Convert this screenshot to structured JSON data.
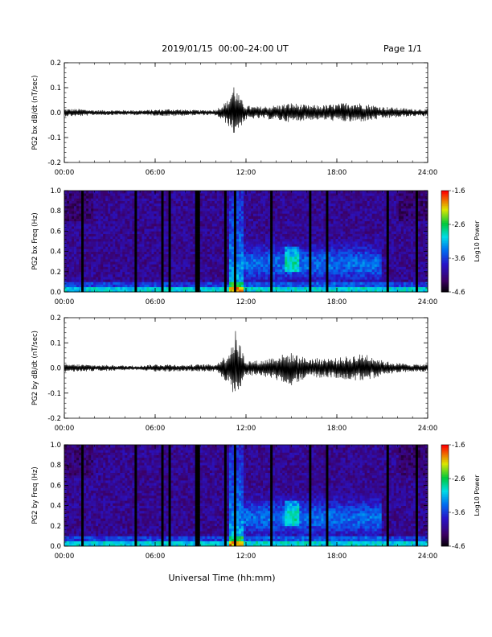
{
  "header": {
    "title": "2019/01/15  00:00–24:00 UT",
    "page": "Page 1/1"
  },
  "footer": {
    "xlabel": "Universal Time (hh:mm)"
  },
  "chart_data": [
    {
      "type": "line",
      "ylabel": "PG2 bx dB/dt (nT/sec)",
      "xlim": [
        0,
        24
      ],
      "ylim": [
        -0.2,
        0.2
      ],
      "xticks": [
        "00:00",
        "06:00",
        "12:00",
        "18:00",
        "24:00"
      ],
      "yticks": [
        "0.2",
        "0.1",
        "0.0",
        "-0.1",
        "-0.2"
      ],
      "envelope": {
        "x": [
          0,
          1,
          2,
          3,
          4,
          5,
          6,
          7,
          8,
          9,
          10,
          10.8,
          11.2,
          11.6,
          12,
          12.5,
          13,
          14,
          15,
          16,
          17,
          18,
          19,
          20,
          21,
          22,
          23,
          24
        ],
        "max": [
          0.015,
          0.015,
          0.01,
          0.01,
          0.01,
          0.01,
          0.012,
          0.015,
          0.012,
          0.01,
          0.012,
          0.05,
          0.12,
          0.06,
          0.03,
          0.025,
          0.025,
          0.03,
          0.04,
          0.03,
          0.03,
          0.035,
          0.045,
          0.035,
          0.025,
          0.02,
          0.015,
          0.015
        ],
        "min": [
          -0.015,
          -0.015,
          -0.01,
          -0.01,
          -0.01,
          -0.01,
          -0.012,
          -0.015,
          -0.012,
          -0.01,
          -0.012,
          -0.05,
          -0.09,
          -0.06,
          -0.03,
          -0.025,
          -0.025,
          -0.03,
          -0.04,
          -0.03,
          -0.03,
          -0.035,
          -0.04,
          -0.035,
          -0.025,
          -0.02,
          -0.015,
          -0.015
        ]
      }
    },
    {
      "type": "heatmap",
      "ylabel": "PG2 bx Freq (Hz)",
      "xlim": [
        0,
        24
      ],
      "ylim": [
        0,
        1.0
      ],
      "xticks": [
        "00:00",
        "06:00",
        "12:00",
        "18:00",
        "24:00"
      ],
      "yticks": [
        "1.0",
        "0.8",
        "0.6",
        "0.4",
        "0.2",
        "0.0"
      ],
      "colorbar": {
        "label": "Log10 Power",
        "range": [
          -4.6,
          -1.6
        ],
        "ticks": [
          "-1.6",
          "-2.6",
          "-3.6",
          "-4.6"
        ]
      },
      "gaps_hours": [
        1.2,
        4.7,
        6.5,
        6.9,
        8.8,
        10.7,
        11.3,
        13.7,
        16.2,
        17.3,
        21.3,
        23.3
      ]
    },
    {
      "type": "line",
      "ylabel": "PG2 by dB/dt (nT/sec)",
      "xlim": [
        0,
        24
      ],
      "ylim": [
        -0.2,
        0.2
      ],
      "xticks": [
        "00:00",
        "06:00",
        "12:00",
        "18:00",
        "24:00"
      ],
      "yticks": [
        "0.2",
        "0.1",
        "0.0",
        "-0.1",
        "-0.2"
      ],
      "envelope": {
        "x": [
          0,
          1,
          2,
          3,
          4,
          5,
          6,
          7,
          8,
          9,
          10,
          10.8,
          11.3,
          11.7,
          12,
          12.5,
          13,
          14,
          15,
          16,
          17,
          18,
          19,
          20,
          21,
          22,
          23,
          24
        ],
        "max": [
          0.015,
          0.015,
          0.012,
          0.012,
          0.01,
          0.01,
          0.015,
          0.015,
          0.012,
          0.015,
          0.015,
          0.06,
          0.15,
          0.08,
          0.03,
          0.03,
          0.03,
          0.05,
          0.06,
          0.04,
          0.04,
          0.04,
          0.05,
          0.06,
          0.03,
          0.02,
          0.015,
          0.015
        ],
        "min": [
          -0.015,
          -0.015,
          -0.012,
          -0.012,
          -0.01,
          -0.01,
          -0.015,
          -0.015,
          -0.012,
          -0.015,
          -0.015,
          -0.06,
          -0.15,
          -0.08,
          -0.03,
          -0.03,
          -0.035,
          -0.05,
          -0.07,
          -0.04,
          -0.04,
          -0.04,
          -0.05,
          -0.05,
          -0.03,
          -0.02,
          -0.015,
          -0.015
        ]
      }
    },
    {
      "type": "heatmap",
      "ylabel": "PG2 by Freq (Hz)",
      "xlim": [
        0,
        24
      ],
      "ylim": [
        0,
        1.0
      ],
      "xticks": [
        "00:00",
        "06:00",
        "12:00",
        "18:00",
        "24:00"
      ],
      "yticks": [
        "1.0",
        "0.8",
        "0.6",
        "0.4",
        "0.2",
        "0.0"
      ],
      "colorbar": {
        "label": "Log10 Power",
        "range": [
          -4.6,
          -1.6
        ],
        "ticks": [
          "-1.6",
          "-2.6",
          "-3.6",
          "-4.6"
        ]
      },
      "gaps_hours": [
        1.2,
        4.7,
        6.5,
        6.9,
        8.8,
        10.7,
        11.3,
        13.7,
        16.2,
        17.3,
        21.3,
        23.3
      ]
    }
  ]
}
